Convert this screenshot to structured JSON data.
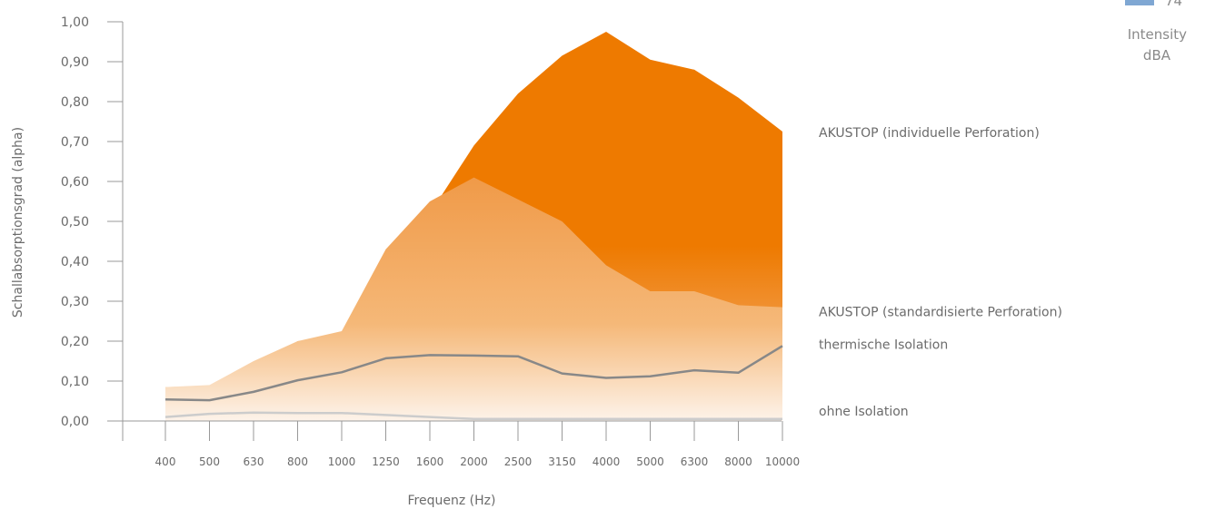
{
  "chart_data": {
    "type": "area",
    "ylabel": "Schallabsorptionsgrad (alpha)",
    "xlabel": "Frequenz (Hz)",
    "categories": [
      "400",
      "500",
      "630",
      "800",
      "1000",
      "1250",
      "1600",
      "2000",
      "2500",
      "3150",
      "4000",
      "5000",
      "6300",
      "8000",
      "10000"
    ],
    "ylim": [
      0,
      1.0
    ],
    "yticks": [
      "0,00",
      "0,10",
      "0,20",
      "0,30",
      "0,40",
      "0,50",
      "0,60",
      "0,70",
      "0,80",
      "0,90",
      "1,00"
    ],
    "series": [
      {
        "name": "AKUSTOP (individuelle Perforation)",
        "style": "area",
        "color": "#ee7a00",
        "values": [
          0.085,
          0.088,
          0.12,
          0.2,
          0.21,
          0.4,
          0.52,
          0.69,
          0.82,
          0.915,
          0.975,
          0.905,
          0.88,
          0.81,
          0.725
        ]
      },
      {
        "name": "AKUSTOP (standardisierte Perforation)",
        "style": "area",
        "color": "#f1a050",
        "values": [
          0.085,
          0.09,
          0.15,
          0.2,
          0.225,
          0.43,
          0.55,
          0.61,
          0.555,
          0.5,
          0.39,
          0.325,
          0.325,
          0.29,
          0.285
        ]
      },
      {
        "name": "thermische Isolation",
        "style": "line",
        "color": "#888888",
        "values": [
          0.054,
          0.052,
          0.073,
          0.102,
          0.122,
          0.157,
          0.165,
          0.164,
          0.162,
          0.119,
          0.108,
          0.112,
          0.127,
          0.121,
          0.188
        ]
      },
      {
        "name": "ohne Isolation",
        "style": "line",
        "color": "#cccccc",
        "values": [
          0.01,
          0.018,
          0.021,
          0.02,
          0.02,
          0.015,
          0.01,
          0.005,
          0.005,
          0.005,
          0.005,
          0.005,
          0.005,
          0.005,
          0.005
        ]
      }
    ],
    "legend": {
      "value": "74",
      "label_line1": "Intensity",
      "label_line2": "dBA",
      "swatch_color": "#7fa7d3",
      "position": "top-right"
    }
  }
}
